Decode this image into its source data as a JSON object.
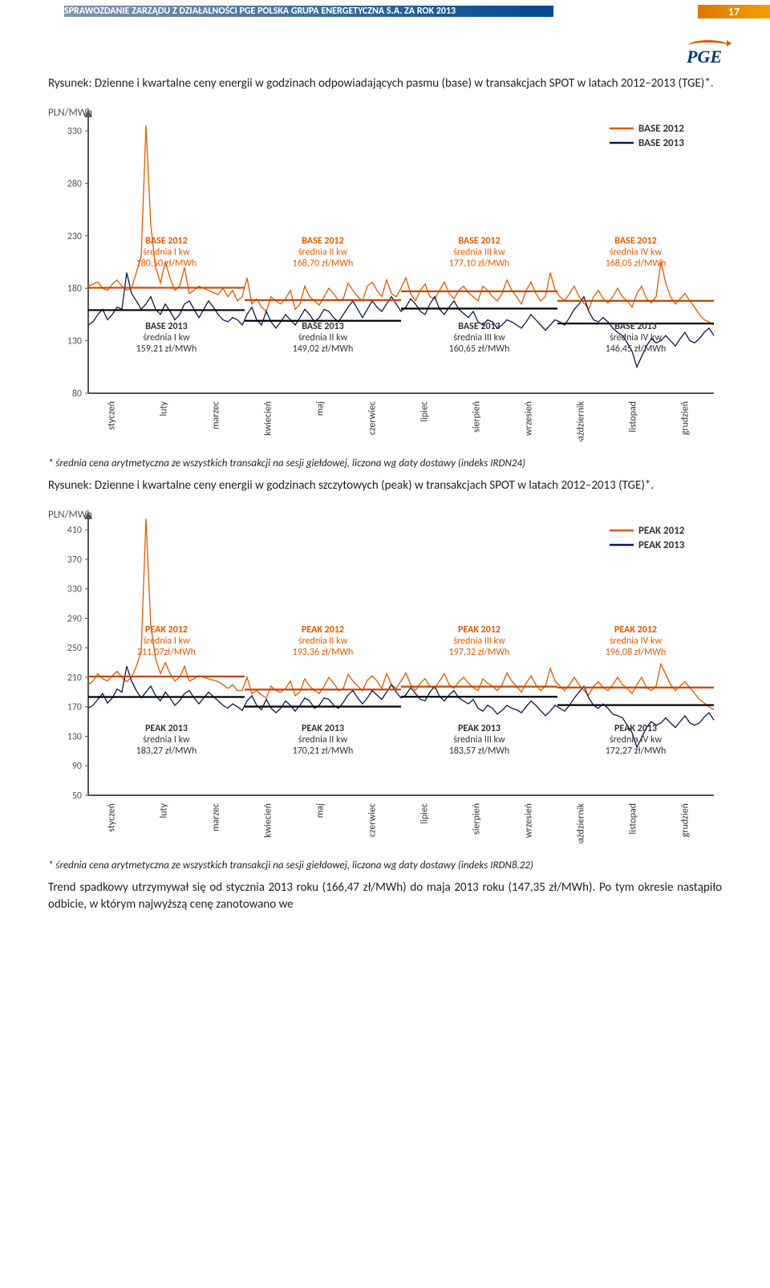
{
  "header": {
    "title": "SPRAWOZDANIE ZARZĄDU Z DZIAŁALNOŚCI PGE POLSKA GRUPA ENERGETYCZNA S.A. ZA ROK 2013",
    "page": "17"
  },
  "logo": "PGE",
  "figure1": {
    "caption": "Rysunek: Dzienne i kwartalne ceny energii w godzinach odpowiadających pasmu (base) w transakcjach SPOT w latach 2012–2013 (TGE)*.",
    "ylabel": "PLN/MWh",
    "yticks": [
      80,
      130,
      180,
      230,
      280,
      330
    ],
    "ymin": 80,
    "ymax": 340,
    "months": [
      "styczeń",
      "luty",
      "marzec",
      "kwiecień",
      "maj",
      "czerwiec",
      "lipiec",
      "sierpień",
      "wrzesień",
      "październik",
      "listopad",
      "grudzień"
    ],
    "legend": [
      {
        "label": "BASE 2012",
        "color": "#e25a00"
      },
      {
        "label": "BASE 2013",
        "color": "#0a1a4f"
      }
    ],
    "q_lines": {
      "q1": {
        "x0": 0.0,
        "x1": 0.25,
        "v2012": 180.5,
        "v2013": 159.21
      },
      "q2": {
        "x0": 0.25,
        "x1": 0.5,
        "v2012": 168.7,
        "v2013": 149.02
      },
      "q3": {
        "x0": 0.5,
        "x1": 0.75,
        "v2012": 177.1,
        "v2013": 160.65
      },
      "q4": {
        "x0": 0.75,
        "x1": 1.0,
        "v2012": 168.05,
        "v2013": 146.45
      }
    },
    "annos_top": [
      {
        "t1": "BASE 2012",
        "t2": "średnia I kw",
        "t3": "180,50 zł/MWh"
      },
      {
        "t1": "BASE 2012",
        "t2": "średnia II kw",
        "t3": "168,70 zł/MWh"
      },
      {
        "t1": "BASE 2012",
        "t2": "średnia III kw",
        "t3": "177,10 zł/MWh"
      },
      {
        "t1": "BASE 2012",
        "t2": "średnia IV kw",
        "t3": "168,05 zł/MWh"
      }
    ],
    "annos_bot": [
      {
        "t1": "BASE 2013",
        "t2": "średnia I kw",
        "t3": "159,21 zł/MWh"
      },
      {
        "t1": "BASE 2013",
        "t2": "średnia II kw",
        "t3": "149,02 zł/MWh"
      },
      {
        "t1": "BASE 2013",
        "t2": "średnia III kw",
        "t3": "160,65 zł/MWh"
      },
      {
        "t1": "BASE 2013",
        "t2": "średnia IV kw",
        "t3": "146,45 zł/MWh"
      }
    ],
    "footnote": "* średnia cena arytmetyczna ze wszystkich transakcji na sesji giełdowej, liczona wg daty dostawy (indeks IRDN24)",
    "series2012": [
      182,
      184,
      186,
      180,
      178,
      184,
      188,
      182,
      178,
      180,
      195,
      210,
      335,
      240,
      200,
      185,
      205,
      190,
      178,
      182,
      200,
      175,
      178,
      182,
      180,
      178,
      176,
      174,
      180,
      172,
      178,
      168,
      172,
      190,
      165,
      170,
      162,
      158,
      172,
      168,
      165,
      170,
      178,
      160,
      165,
      182,
      172,
      168,
      164,
      172,
      180,
      175,
      168,
      170,
      185,
      178,
      172,
      168,
      182,
      186,
      178,
      172,
      188,
      175,
      172,
      180,
      190,
      175,
      168,
      178,
      184,
      172,
      170,
      178,
      186,
      175,
      170,
      178,
      182,
      176,
      172,
      168,
      182,
      178,
      172,
      168,
      175,
      188,
      178,
      172,
      165,
      178,
      186,
      175,
      168,
      172,
      195,
      178,
      172,
      168,
      175,
      182,
      172,
      166,
      160,
      172,
      178,
      170,
      166,
      172,
      180,
      172,
      168,
      162,
      175,
      182,
      170,
      166,
      172,
      205,
      185,
      172,
      165,
      170,
      175,
      168,
      162,
      155,
      150,
      148,
      145
    ],
    "series2013": [
      145,
      148,
      155,
      160,
      150,
      155,
      162,
      160,
      195,
      175,
      168,
      160,
      165,
      172,
      160,
      155,
      165,
      158,
      150,
      155,
      165,
      168,
      160,
      152,
      160,
      168,
      162,
      155,
      150,
      148,
      152,
      150,
      145,
      155,
      162,
      150,
      145,
      158,
      148,
      142,
      148,
      155,
      150,
      145,
      152,
      160,
      155,
      148,
      152,
      160,
      158,
      152,
      148,
      155,
      162,
      168,
      160,
      152,
      160,
      168,
      162,
      158,
      165,
      172,
      165,
      158,
      162,
      170,
      165,
      158,
      155,
      165,
      172,
      160,
      155,
      162,
      168,
      160,
      156,
      152,
      158,
      148,
      145,
      150,
      148,
      142,
      145,
      150,
      148,
      145,
      142,
      148,
      155,
      150,
      145,
      140,
      145,
      150,
      148,
      145,
      152,
      160,
      165,
      172,
      158,
      150,
      148,
      152,
      148,
      142,
      138,
      135,
      128,
      120,
      105,
      115,
      125,
      132,
      128,
      130,
      135,
      130,
      125,
      132,
      138,
      130,
      128,
      132,
      138,
      142,
      135
    ],
    "colors": {
      "s2012": "#e25a00",
      "s2013": "#0a1a4f",
      "avg2012": "#c94500",
      "avg2013": "#000000",
      "axis": "#555555"
    }
  },
  "figure2": {
    "preText": "Rysunek: Dzienne i kwartalne ceny energii w godzinach szczytowych (peak) w transakcjach SPOT w latach 2012–2013 (TGE)*.",
    "ylabel": "PLN/MWh",
    "yticks": [
      50,
      90,
      130,
      170,
      210,
      250,
      290,
      330,
      370,
      410
    ],
    "ymin": 50,
    "ymax": 420,
    "months": [
      "styczeń",
      "luty",
      "marzec",
      "kwiecień",
      "maj",
      "czerwiec",
      "lipiec",
      "sierpień",
      "wrzesień",
      "październik",
      "listopad",
      "grudzień"
    ],
    "legend": [
      {
        "label": "PEAK 2012",
        "color": "#e25a00"
      },
      {
        "label": "PEAK 2013",
        "color": "#0a1a4f"
      }
    ],
    "q_lines": {
      "q1": {
        "x0": 0.0,
        "x1": 0.25,
        "v2012": 211.07,
        "v2013": 183.27
      },
      "q2": {
        "x0": 0.25,
        "x1": 0.5,
        "v2012": 193.36,
        "v2013": 170.21
      },
      "q3": {
        "x0": 0.5,
        "x1": 0.75,
        "v2012": 197.32,
        "v2013": 183.57
      },
      "q4": {
        "x0": 0.75,
        "x1": 1.0,
        "v2012": 196.08,
        "v2013": 172.27
      }
    },
    "annos_top": [
      {
        "t1": "PEAK 2012",
        "t2": "średnia I kw",
        "t3": "211,07zł/MWh"
      },
      {
        "t1": "PEAK 2012",
        "t2": "średnia II kw",
        "t3": "193,36 zł/MWh"
      },
      {
        "t1": "PEAK 2012",
        "t2": "średnia III kw",
        "t3": "197,32 zł/MWh"
      },
      {
        "t1": "PEAK 2012",
        "t2": "średnia IV kw",
        "t3": "196,08 zł/MWh"
      }
    ],
    "annos_bot": [
      {
        "t1": "PEAK 2013",
        "t2": "średnia I kw",
        "t3": "183,27 zł/MWh"
      },
      {
        "t1": "PEAK 2013",
        "t2": "średnia II kw",
        "t3": "170,21 zł/MWh"
      },
      {
        "t1": "PEAK 2013",
        "t2": "średnia III kw",
        "t3": "183,57 zł/MWh"
      },
      {
        "t1": "PEAK 2013",
        "t2": "średnia IV kw",
        "t3": "172,27 zł/MWh"
      }
    ],
    "footnote": "* średnia cena arytmetyczna ze wszystkich transakcji na sesji giełdowej, liczona wg daty dostawy (indeks IRDN8.22)",
    "series2012": [
      200,
      205,
      215,
      208,
      205,
      212,
      218,
      210,
      204,
      210,
      225,
      245,
      425,
      280,
      235,
      215,
      230,
      215,
      205,
      210,
      225,
      205,
      208,
      212,
      210,
      208,
      206,
      204,
      200,
      195,
      200,
      192,
      192,
      210,
      188,
      192,
      186,
      182,
      198,
      192,
      190,
      195,
      205,
      185,
      190,
      208,
      198,
      192,
      188,
      198,
      210,
      202,
      192,
      195,
      214,
      205,
      198,
      192,
      206,
      212,
      205,
      195,
      215,
      200,
      195,
      205,
      216,
      200,
      192,
      202,
      208,
      198,
      195,
      205,
      215,
      200,
      195,
      204,
      210,
      202,
      196,
      192,
      208,
      202,
      198,
      192,
      200,
      216,
      205,
      198,
      190,
      202,
      212,
      200,
      192,
      198,
      222,
      205,
      198,
      192,
      200,
      210,
      200,
      192,
      186,
      198,
      204,
      196,
      192,
      200,
      210,
      200,
      195,
      188,
      200,
      210,
      196,
      192,
      198,
      228,
      214,
      200,
      192,
      198,
      204,
      196,
      188,
      180,
      175,
      170,
      166
    ],
    "series2013": [
      168,
      172,
      180,
      188,
      175,
      182,
      194,
      190,
      225,
      205,
      192,
      182,
      190,
      198,
      185,
      178,
      190,
      182,
      172,
      178,
      188,
      192,
      182,
      174,
      182,
      190,
      184,
      178,
      172,
      168,
      174,
      170,
      165,
      178,
      185,
      172,
      166,
      180,
      168,
      162,
      168,
      178,
      172,
      164,
      172,
      182,
      178,
      168,
      172,
      182,
      180,
      172,
      168,
      176,
      186,
      192,
      182,
      174,
      182,
      192,
      186,
      180,
      190,
      200,
      190,
      182,
      186,
      196,
      188,
      180,
      178,
      190,
      198,
      184,
      178,
      186,
      192,
      182,
      178,
      174,
      180,
      168,
      164,
      172,
      168,
      160,
      165,
      172,
      168,
      166,
      162,
      170,
      178,
      172,
      165,
      158,
      164,
      172,
      168,
      164,
      172,
      182,
      190,
      198,
      182,
      172,
      168,
      174,
      168,
      160,
      158,
      155,
      145,
      135,
      115,
      128,
      142,
      150,
      145,
      148,
      155,
      148,
      142,
      150,
      158,
      148,
      145,
      148,
      156,
      162,
      152
    ],
    "colors": {
      "s2012": "#e25a00",
      "s2013": "#0a1a4f",
      "avg2012": "#c94500",
      "avg2013": "#000000",
      "axis": "#555555"
    }
  },
  "bottomPara": "Trend spadkowy utrzymywał się od stycznia 2013 roku (166,47 zł/MWh) do maja 2013 roku (147,35 zł/MWh). Po tym okresie nastąpiło odbicie, w którym najwyższą cenę zanotowano we"
}
